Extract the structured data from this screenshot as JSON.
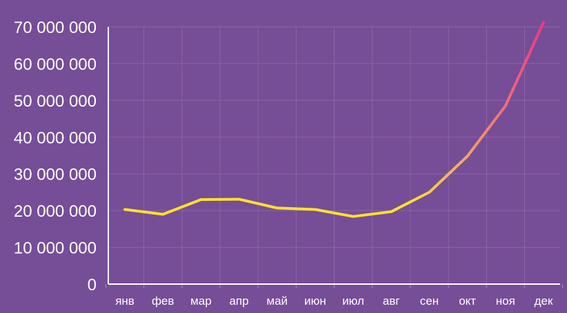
{
  "chart_data": {
    "type": "line",
    "categories": [
      "янв",
      "фев",
      "мар",
      "апр",
      "май",
      "июн",
      "июл",
      "авг",
      "сен",
      "окт",
      "ноя",
      "дек"
    ],
    "series": [
      {
        "values": [
          20300000,
          19000000,
          23000000,
          23100000,
          20700000,
          20300000,
          18400000,
          19700000,
          25000000,
          34800000,
          48500000,
          71200000
        ]
      }
    ],
    "y_ticks": [
      "0",
      "10 000 000",
      "20 000 000",
      "30 000 000",
      "40 000 000",
      "50 000 000",
      "60 000 000",
      "70 000 000"
    ],
    "ylim": [
      0,
      70000000
    ],
    "y_tick_step": 10000000,
    "grid": true,
    "colors": {
      "background": "#764d97",
      "line_start": "#fde12d",
      "line_mid": "#f6a56b",
      "line_end": "#e8198b",
      "axis": "#ffffff",
      "text": "#ffffff"
    }
  }
}
